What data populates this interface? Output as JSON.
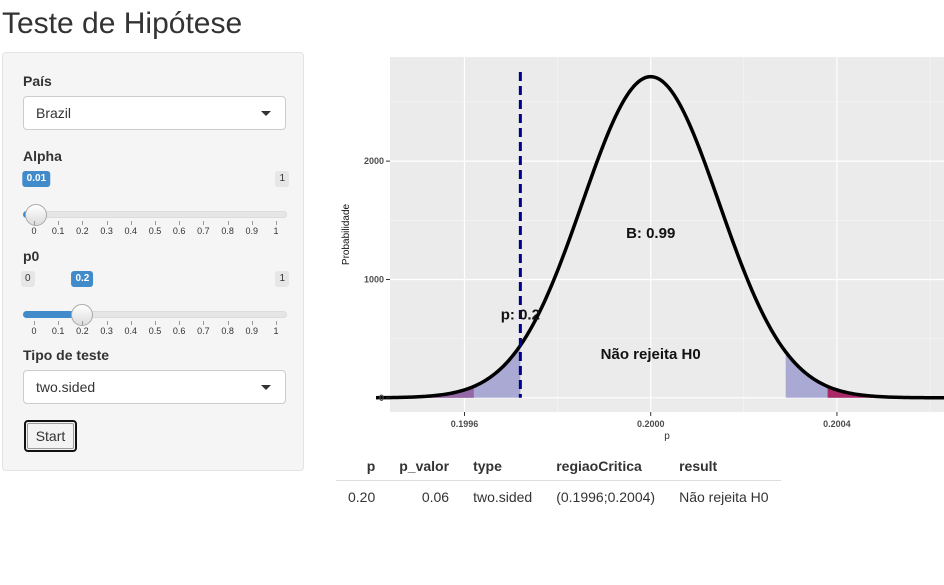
{
  "page_title": "Teste de Hipótese",
  "sidebar": {
    "country": {
      "label": "País",
      "value": "Brazil"
    },
    "alpha": {
      "label": "Alpha",
      "min": 0,
      "max": 1,
      "min_label": "0",
      "max_label": "1",
      "value": 0.01,
      "value_label": "0.01",
      "ticks": [
        "0",
        "0.1",
        "0.2",
        "0.3",
        "0.4",
        "0.5",
        "0.6",
        "0.7",
        "0.8",
        "0.9",
        "1"
      ]
    },
    "p0": {
      "label": "p0",
      "min": 0,
      "max": 1,
      "min_label": "0",
      "max_label": "1",
      "value": 0.2,
      "value_label": "0.2",
      "ticks": [
        "0",
        "0.1",
        "0.2",
        "0.3",
        "0.4",
        "0.5",
        "0.6",
        "0.7",
        "0.8",
        "0.9",
        "1"
      ]
    },
    "test_type": {
      "label": "Tipo de teste",
      "value": "two.sided"
    },
    "start_label": "Start"
  },
  "chart_data": {
    "type": "area",
    "xlabel": "p",
    "ylabel": "Probabilidade",
    "xlim": [
      0.19944,
      0.20063
    ],
    "ylim": [
      -120,
      2880
    ],
    "x_ticks": [
      0.1996,
      0.2,
      0.2004
    ],
    "x_tick_labels": [
      "0.1996",
      "0.2000",
      "0.2004"
    ],
    "y_ticks": [
      0,
      1000,
      2000
    ],
    "y_tick_labels": [
      "0",
      "1000",
      "2000"
    ],
    "grid": true,
    "background": "#ebebeb",
    "curve": {
      "type": "normal",
      "mean": 0.2,
      "sd": 0.000147,
      "x_range": [
        0.19941,
        0.20063
      ],
      "color": "#000000"
    },
    "critical_lower": 0.19962,
    "critical_upper": 0.20038,
    "observed_p": 0.19972,
    "observed_lower_band": 0.19972,
    "observed_upper_band": 0.20029,
    "observed_line_color": "#00008b",
    "alpha_region_color": "#a8195a",
    "pvalue_region_color": "#8585c7",
    "annotations": [
      {
        "text": "B: 0.99",
        "x": 0.2,
        "y": 1350
      },
      {
        "text": "p: 0.2",
        "x": 0.19972,
        "y": 660
      },
      {
        "text": "Não rejeita H0",
        "x": 0.2,
        "y": 330
      }
    ]
  },
  "results_table": {
    "columns": [
      "p",
      "p_valor",
      "type",
      "regiaoCritica",
      "result"
    ],
    "rows": [
      [
        "0.20",
        "0.06",
        "two.sided",
        "(0.1996;0.2004)",
        "Não rejeita H0"
      ]
    ]
  }
}
